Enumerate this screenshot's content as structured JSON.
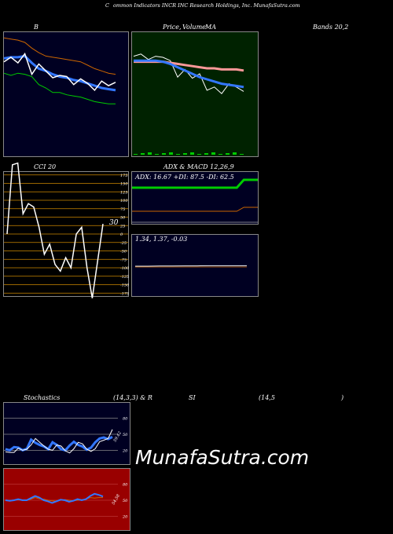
{
  "header": {
    "title_c": "C",
    "title_rest": "ommon  Indicators INCR INC Research Holdings, Inc. MunafaSutra.com"
  },
  "labels": {
    "b": "B",
    "price": "Price,",
    "volume": "Volume",
    "ma": "MA",
    "bands": "Bands 20,2",
    "cci": "CCI 20",
    "adx_title": "ADX  & MACD 12,26,9",
    "stoch_a": "Stochastics",
    "stoch_b": "(14,3,3) & R",
    "stoch_c": "SI",
    "stoch_d": "(14,5",
    "stoch_e": ")"
  },
  "watermark": "MunafaSutra.com",
  "colors": {
    "bg": "#000000",
    "navy": "#000033",
    "green_panel": "#002200",
    "rsi_panel": "#990000",
    "green_line": "#00cc00",
    "blue_line": "#3377ff",
    "orange": "#cc6600"
  },
  "chart_data": [
    {
      "id": "bollinger",
      "type": "line",
      "series": [
        {
          "values": [
            73,
            71,
            73,
            72,
            70,
            63,
            60,
            56,
            56,
            54,
            53,
            52,
            50,
            48,
            47,
            46,
            46
          ]
        },
        {
          "values": [
            86,
            87,
            87,
            88,
            82,
            77,
            75,
            72,
            70,
            69,
            67,
            66,
            64,
            62,
            60,
            59,
            58
          ]
        },
        {
          "values": [
            104,
            103,
            102,
            100,
            95,
            91,
            88,
            87,
            86,
            85,
            84,
            83,
            80,
            77,
            75,
            73,
            72
          ]
        },
        {
          "values": [
            83,
            87,
            82,
            90,
            72,
            81,
            75,
            69,
            71,
            70,
            63,
            68,
            64,
            58,
            66,
            62,
            65
          ]
        }
      ]
    },
    {
      "id": "price_ma",
      "type": "line",
      "series": [
        {
          "values": [
            91,
            93,
            88,
            91,
            90,
            87,
            72,
            79,
            71,
            75,
            60,
            63,
            57,
            66,
            63,
            59
          ]
        },
        {
          "values": [
            86,
            86,
            86,
            86,
            86,
            85,
            84,
            83,
            82,
            81,
            80,
            80,
            79,
            79,
            79,
            78
          ]
        },
        {
          "values": [
            87,
            87,
            87,
            87,
            86,
            84,
            81,
            78,
            75,
            72,
            70,
            68,
            66,
            65,
            64,
            63
          ]
        }
      ]
    },
    {
      "id": "cci",
      "type": "line",
      "ylabel": "CCI 20",
      "ylim": [
        -175,
        175
      ],
      "ticks": [
        175,
        150,
        125,
        100,
        75,
        50,
        25,
        0,
        -25,
        -50,
        -75,
        -100,
        -125,
        -150,
        -175
      ],
      "values": [
        0,
        205,
        210,
        60,
        90,
        80,
        20,
        -60,
        -30,
        -90,
        -110,
        -70,
        -100,
        0,
        20,
        -100,
        -190,
        -80,
        30
      ],
      "last_label": "30"
    },
    {
      "id": "adx",
      "type": "line",
      "legend": "ADX: 16.67  +DI: 87.5  -DI: 62.5",
      "series": [
        {
          "values": [
            40,
            40,
            40,
            40,
            40,
            40,
            40,
            40,
            40,
            40,
            40,
            40,
            40,
            40,
            40,
            40,
            50,
            50,
            50
          ]
        },
        {
          "values": [
            10,
            10,
            10,
            10,
            10,
            10,
            10,
            10,
            10,
            10,
            10,
            10,
            10,
            10,
            10,
            10,
            15,
            15,
            15
          ]
        }
      ]
    },
    {
      "id": "macd",
      "type": "line",
      "legend": "1.34,  1.37,  -0.03",
      "series": [
        {
          "values": [
            1.34,
            1.34,
            1.35,
            1.35,
            1.36,
            1.36,
            1.37,
            1.37,
            1.37,
            1.37
          ]
        }
      ]
    },
    {
      "id": "stochastics",
      "type": "line",
      "ylim": [
        0,
        100
      ],
      "ticks": [
        80,
        50,
        20
      ],
      "last_label": "59.42",
      "series": [
        {
          "values": [
            22,
            20,
            26,
            25,
            20,
            23,
            40,
            34,
            30,
            27,
            22,
            35,
            30,
            22,
            20,
            29,
            36,
            30,
            27,
            21,
            25,
            35,
            42,
            44,
            41,
            45
          ]
        },
        {
          "values": [
            17,
            16,
            16,
            24,
            20,
            22,
            30,
            42,
            35,
            28,
            22,
            20,
            30,
            28,
            19,
            15,
            23,
            35,
            32,
            22,
            18,
            23,
            36,
            39,
            42,
            59
          ]
        }
      ]
    },
    {
      "id": "rsi",
      "type": "line",
      "ylim": [
        0,
        100
      ],
      "ticks": [
        80,
        50,
        20
      ],
      "last_label": "54.58",
      "series": [
        {
          "values": [
            50,
            50,
            50,
            51,
            50,
            50,
            52,
            55,
            53,
            52,
            50,
            49,
            48,
            50,
            51,
            50,
            49,
            50,
            51,
            52,
            55,
            54,
            55,
            55
          ]
        },
        {
          "values": [
            50,
            49,
            50,
            52,
            50,
            50,
            54,
            58,
            55,
            50,
            48,
            45,
            48,
            51,
            50,
            47,
            49,
            52,
            50,
            52,
            58,
            62,
            60,
            57
          ]
        }
      ]
    }
  ]
}
